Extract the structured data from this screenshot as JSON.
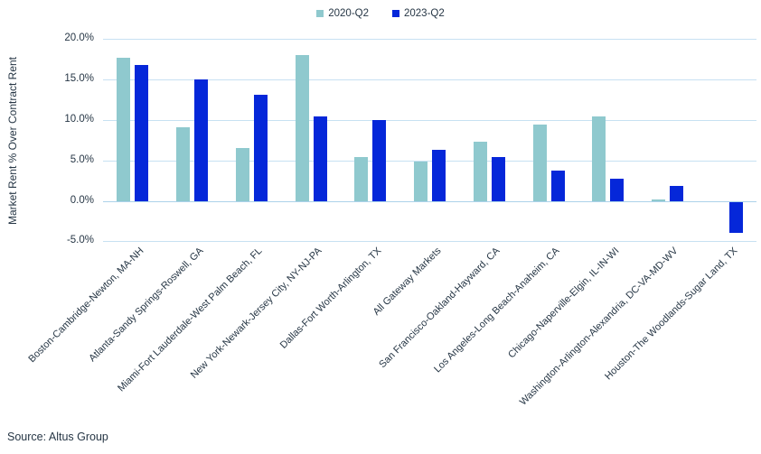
{
  "source_note": "Source: Altus Group",
  "colors": {
    "series_2020": "#8FC9CE",
    "series_2023": "#0527D9",
    "gridline": "#C7E1F2",
    "zero_line": "#ACD2EA",
    "text": "#263645"
  },
  "chart_data": {
    "type": "bar",
    "title": "",
    "xlabel": "",
    "ylabel": "Market Rent % Over Contract Rent",
    "ylim": [
      -5,
      20
    ],
    "grid": true,
    "legend_position": "top-center",
    "categories": [
      "Boston-Cambridge-Newton, MA-NH",
      "Atlanta-Sandy Springs-Roswell, GA",
      "Miami-Fort Lauderdale-West Palm Beach, FL",
      "New York-Newark-Jersey City, NY-NJ-PA",
      "Dallas-Fort Worth-Arlington, TX",
      "All Gateway Markets",
      "San Francisco-Oakland-Hayward, CA",
      "Los Angeles-Long Beach-Anaheim, CA",
      "Chicago-Naperville-Elgin, IL-IN-WI",
      "Washington-Arlington-Alexandria, DC-VA-MD-WV",
      "Houston-The Woodlands-Sugar Land, TX"
    ],
    "series": [
      {
        "name": "2020-Q2",
        "color": "#8FC9CE",
        "values": [
          17.7,
          9.1,
          6.5,
          18.0,
          5.4,
          4.9,
          7.3,
          9.4,
          10.5,
          0.2,
          0.0
        ]
      },
      {
        "name": "2023-Q2",
        "color": "#0527D9",
        "values": [
          16.8,
          15.0,
          13.1,
          10.5,
          10.0,
          6.3,
          5.4,
          3.8,
          2.8,
          1.9,
          -3.9
        ]
      }
    ],
    "yticks": [
      {
        "value": 20,
        "label": "20.0%"
      },
      {
        "value": 15,
        "label": "15.0%"
      },
      {
        "value": 10,
        "label": "10.0%"
      },
      {
        "value": 5,
        "label": "5.0%"
      },
      {
        "value": 0,
        "label": "0.0%"
      },
      {
        "value": -5,
        "label": "-5.0%"
      }
    ]
  }
}
